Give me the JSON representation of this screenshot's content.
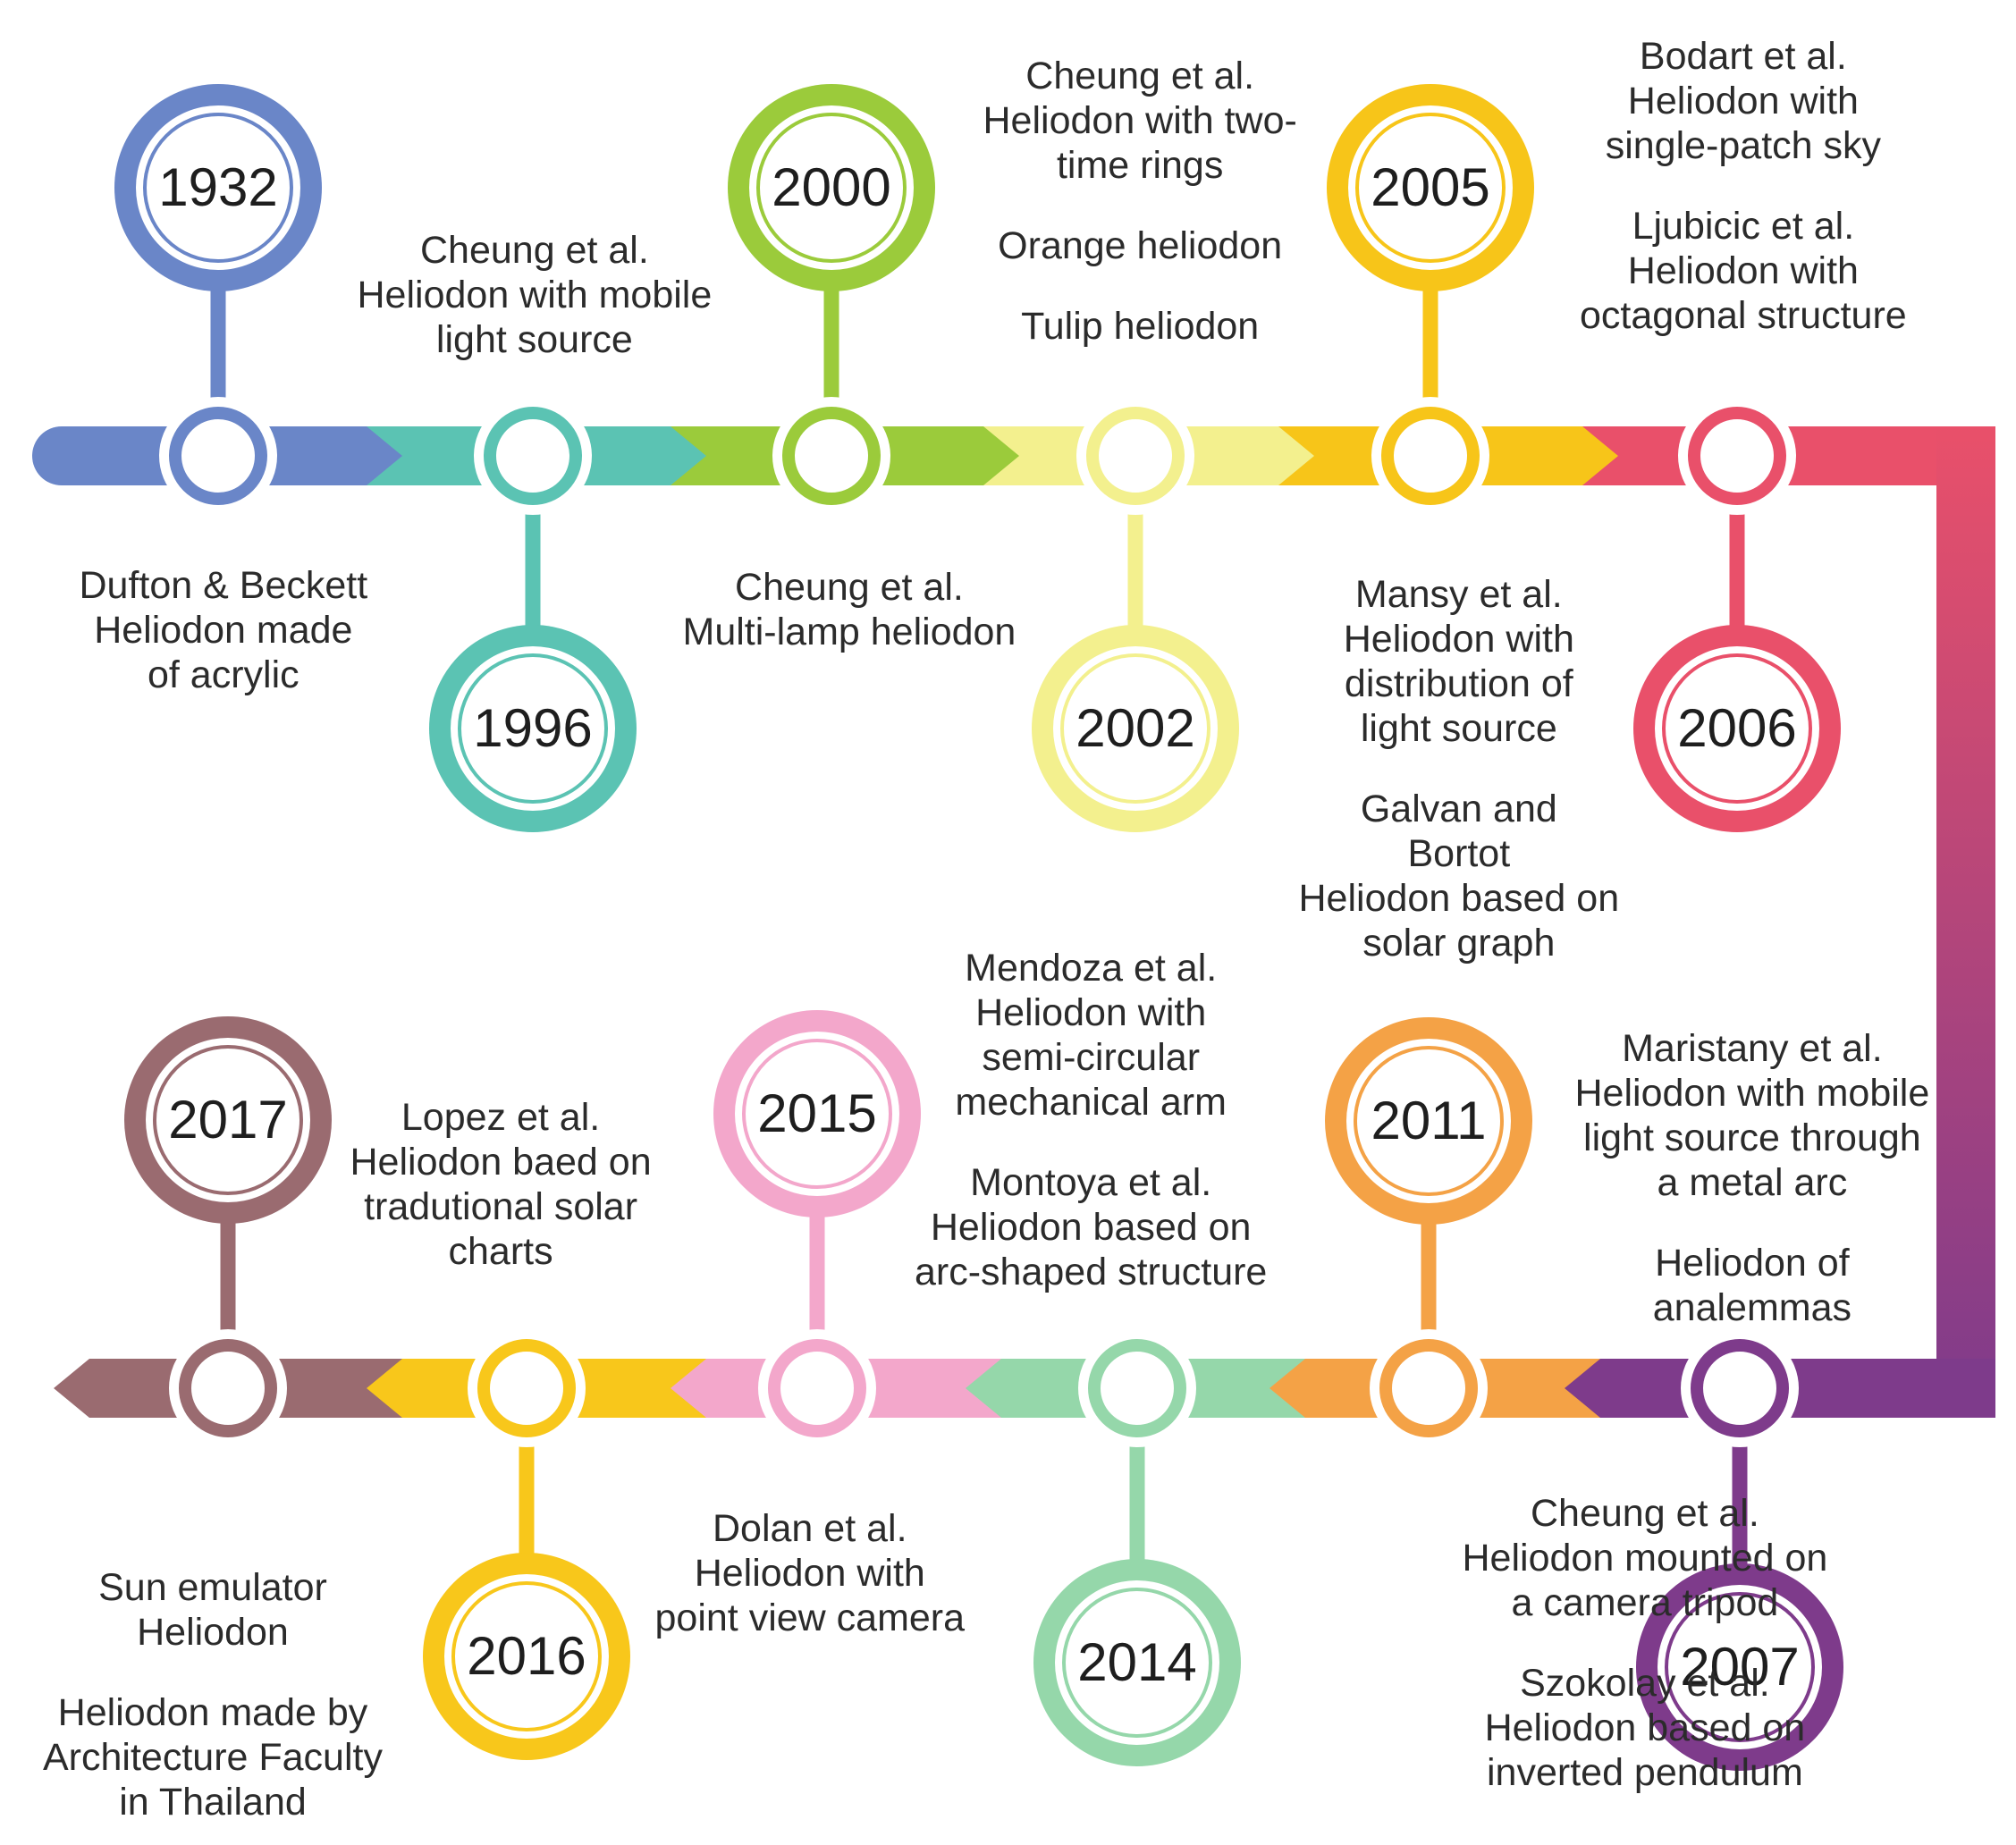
{
  "colors": {
    "blue": "#6A86C8",
    "teal": "#5BC3B3",
    "green": "#9BCB3B",
    "pale_yellow": "#F3F08E",
    "yellow": "#F7C519",
    "red": "#E9506A",
    "purple": "#7E3B8B",
    "orange": "#F4A246",
    "mint": "#95D7AA",
    "pink": "#F3A7CB",
    "gold": "#F8C71B",
    "brown": "#9A6B70"
  },
  "milestones": [
    {
      "year": "1932",
      "color": "blue",
      "entries": [
        [
          "Dufton & Beckett",
          "Heliodon made",
          "of acrylic"
        ]
      ]
    },
    {
      "year": "1996",
      "color": "teal",
      "entries": [
        [
          "Cheung et al.",
          "Heliodon with mobile",
          "light source"
        ]
      ]
    },
    {
      "year": "2000",
      "color": "green",
      "entries": [
        [
          "Cheung et al.",
          "Multi-lamp heliodon"
        ]
      ]
    },
    {
      "year": "2002",
      "color": "pale_yellow",
      "entries": [
        [
          "Cheung et al.",
          "Heliodon with two-",
          "time rings"
        ],
        [
          "Orange heliodon"
        ],
        [
          "Tulip heliodon"
        ]
      ]
    },
    {
      "year": "2005",
      "color": "yellow",
      "entries": [
        [
          "Mansy et al.",
          "Heliodon with",
          "distribution of",
          "light source"
        ],
        [
          "Galvan and",
          "Bortot",
          "Heliodon based on",
          "solar graph"
        ]
      ]
    },
    {
      "year": "2006",
      "color": "red",
      "entries": [
        [
          "Bodart et al.",
          "Heliodon with",
          "single-patch sky"
        ],
        [
          "Ljubicic et al.",
          "Heliodon with",
          "octagonal structure"
        ]
      ]
    },
    {
      "year": "2007",
      "color": "purple",
      "entries": [
        [
          "Maristany et al.",
          "Heliodon with mobile",
          "light source through",
          "a metal arc"
        ],
        [
          "Heliodon of",
          "analemmas"
        ]
      ]
    },
    {
      "year": "2011",
      "color": "orange",
      "entries": [
        [
          "Cheung et al.",
          "Heliodon mounted on",
          "a camera tripod"
        ],
        [
          "Szokolay et al.",
          "Heliodon based on",
          "inverted pendulum"
        ]
      ]
    },
    {
      "year": "2014",
      "color": "mint",
      "entries": [
        [
          "Mendoza et al.",
          "Heliodon with",
          "semi-circular",
          "mechanical arm"
        ],
        [
          "Montoya et al.",
          "Heliodon based on",
          "arc-shaped structure"
        ]
      ]
    },
    {
      "year": "2015",
      "color": "pink",
      "entries": [
        [
          "Dolan et al.",
          "Heliodon with",
          "point view camera"
        ]
      ]
    },
    {
      "year": "2016",
      "color": "gold",
      "entries": [
        [
          "Lopez et al.",
          "Heliodon baed on",
          "tradutional solar",
          "charts"
        ]
      ]
    },
    {
      "year": "2017",
      "color": "brown",
      "entries": [
        [
          "Sun emulator",
          "Heliodon"
        ],
        [
          "Heliodon made by",
          "Architecture Faculty",
          "in Thailand"
        ]
      ]
    }
  ]
}
